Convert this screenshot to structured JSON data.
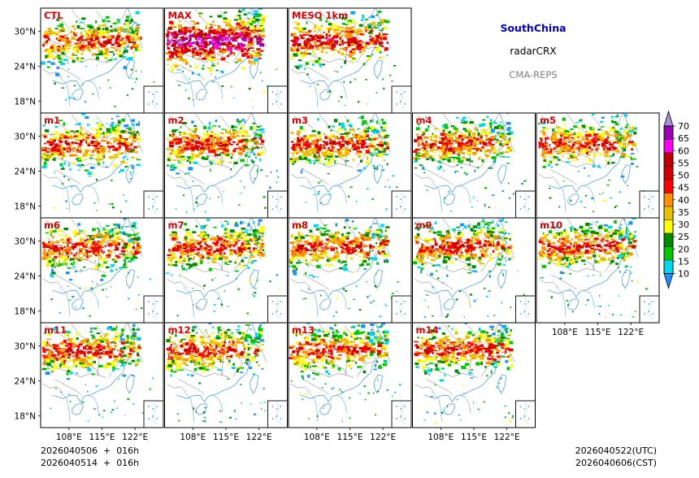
{
  "region": "SouthChina",
  "product": "radarCRX",
  "system": "CMA-REPS",
  "panels": [
    "CTL",
    "MAX",
    "MESO_1km",
    "m1",
    "m2",
    "m3",
    "m4",
    "m5",
    "m6",
    "m7",
    "m8",
    "m9",
    "m10",
    "m11",
    "m12",
    "m13",
    "m14"
  ],
  "ytick_labels": [
    "30°N",
    "24°N",
    "18°N"
  ],
  "xtick_labels": [
    "108°E",
    "115°E",
    "122°E"
  ],
  "init_time_utc": "2026040506  +  016h",
  "init_time_cst": "2026040514  +  016h",
  "valid_time_utc": "2026040522(UTC)",
  "valid_time_cst": "2026040606(CST)",
  "colors": {
    "title": "#0000cc",
    "system": "#808080",
    "panel_label": "#e00000",
    "frame": "#000000",
    "coast": "#3a9ad9",
    "border": "#666666"
  },
  "chart_data": {
    "type": "heatmap",
    "variable": "composite radar reflectivity (dBZ)",
    "map_extent": {
      "lon": [
        102,
        128
      ],
      "lat": [
        16,
        34
      ]
    },
    "yticks_deg": [
      30,
      24,
      18
    ],
    "xticks_deg": [
      108,
      115,
      122
    ],
    "colorbar": {
      "levels": [
        10,
        15,
        20,
        25,
        30,
        35,
        40,
        45,
        50,
        55,
        60,
        65,
        70
      ],
      "colors": [
        "#1e90ff",
        "#00d8f0",
        "#00c800",
        "#008c00",
        "#ffff00",
        "#e8c000",
        "#ff9000",
        "#ff0000",
        "#d20000",
        "#c00000",
        "#ff00f0",
        "#9a00b4",
        "#a690d8"
      ],
      "extend": "both"
    }
  }
}
